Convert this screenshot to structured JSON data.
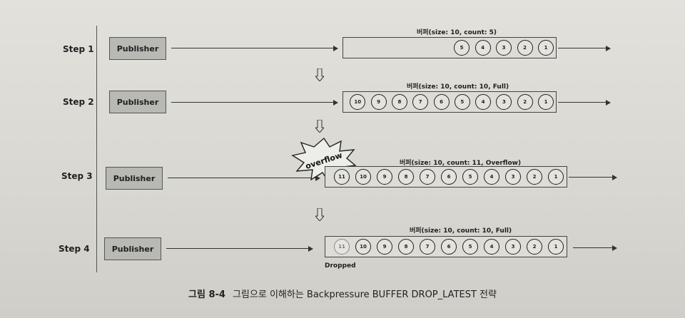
{
  "steps": [
    {
      "label": "Step 1",
      "publisher": "Publisher",
      "buffer_title": "버퍼(size: 10, count: 5)",
      "items": [
        "5",
        "4",
        "3",
        "2",
        "1"
      ]
    },
    {
      "label": "Step 2",
      "publisher": "Publisher",
      "buffer_title": "버퍼(size: 10, count: 10, Full)",
      "items": [
        "10",
        "9",
        "8",
        "7",
        "6",
        "5",
        "4",
        "3",
        "2",
        "1"
      ]
    },
    {
      "label": "Step 3",
      "publisher": "Publisher",
      "buffer_title": "버퍼(size: 10, count: 11, Overflow)",
      "items": [
        "11",
        "10",
        "9",
        "8",
        "7",
        "6",
        "5",
        "4",
        "3",
        "2",
        "1"
      ]
    },
    {
      "label": "Step 4",
      "publisher": "Publisher",
      "buffer_title": "버퍼(size: 10, count: 10, Full)",
      "items": [
        "11",
        "10",
        "9",
        "8",
        "7",
        "6",
        "5",
        "4",
        "3",
        "2",
        "1"
      ]
    }
  ],
  "overflow_label": "overflow",
  "dropped_label": "Dropped",
  "caption": {
    "figure_number": "그림 8-4",
    "text": "그림으로 이해하는 Backpressure BUFFER DROP_LATEST 전략"
  }
}
